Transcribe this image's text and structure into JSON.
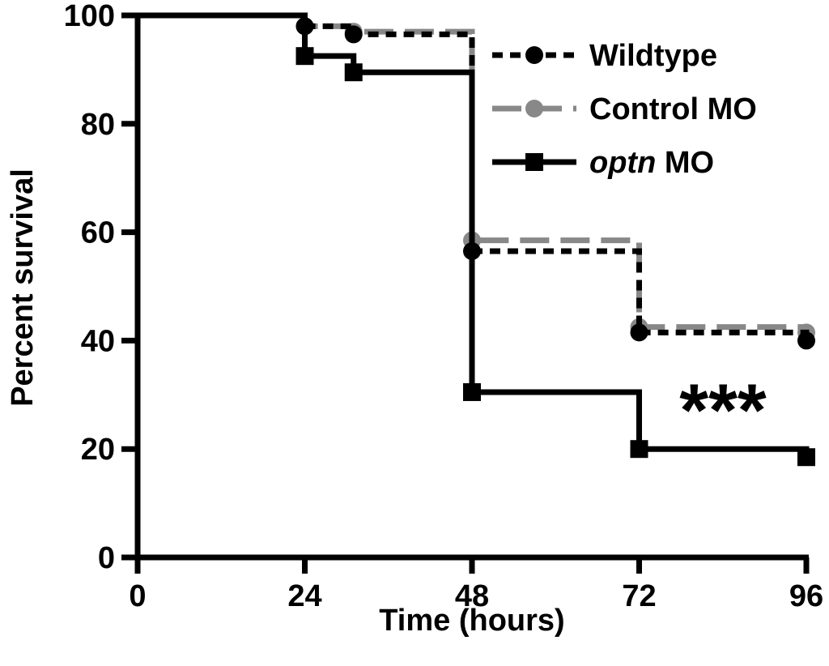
{
  "chart_data": {
    "type": "line",
    "step": true,
    "xlabel": "Time (hours)",
    "ylabel": "Percent survival",
    "xlim": [
      0,
      96
    ],
    "ylim": [
      0,
      100
    ],
    "xticks": [
      0,
      24,
      48,
      72,
      96
    ],
    "yticks": [
      0,
      20,
      40,
      60,
      80,
      100
    ],
    "annotation": "***",
    "legend_position": "top-right",
    "series": [
      {
        "name": "Wildtype",
        "name_parts": [
          {
            "text": "Wildtype",
            "italic": false
          }
        ],
        "color": "#000000",
        "line_style": "dotted",
        "marker": "circle",
        "steps": [
          [
            0,
            100
          ],
          [
            24,
            98
          ],
          [
            31,
            96.5
          ],
          [
            48,
            56.5
          ],
          [
            72,
            41.5
          ],
          [
            96,
            40
          ]
        ],
        "markers": [
          [
            24,
            98
          ],
          [
            31,
            96.5
          ],
          [
            48,
            56.5
          ],
          [
            72,
            41.5
          ],
          [
            96,
            40
          ]
        ]
      },
      {
        "name": "Control MO",
        "name_parts": [
          {
            "text": "Control MO",
            "italic": false
          }
        ],
        "color": "#888888",
        "line_style": "dashed",
        "marker": "circle",
        "steps": [
          [
            0,
            100
          ],
          [
            24,
            98
          ],
          [
            31,
            97
          ],
          [
            48,
            58.5
          ],
          [
            72,
            42.5
          ],
          [
            96,
            41.5
          ]
        ],
        "markers": [
          [
            24,
            98
          ],
          [
            31,
            97
          ],
          [
            48,
            58.5
          ],
          [
            72,
            42.5
          ],
          [
            96,
            41.5
          ]
        ]
      },
      {
        "name": "optn MO",
        "name_parts": [
          {
            "text": "optn",
            "italic": true
          },
          {
            "text": " MO",
            "italic": false
          }
        ],
        "color": "#000000",
        "line_style": "solid",
        "marker": "square",
        "steps": [
          [
            0,
            100
          ],
          [
            24,
            92.5
          ],
          [
            31,
            89.5
          ],
          [
            48,
            30.5
          ],
          [
            72,
            20
          ],
          [
            96,
            18.5
          ]
        ],
        "markers": [
          [
            24,
            92.5
          ],
          [
            31,
            89.5
          ],
          [
            48,
            30.5
          ],
          [
            72,
            20
          ],
          [
            96,
            18.5
          ]
        ]
      }
    ]
  }
}
